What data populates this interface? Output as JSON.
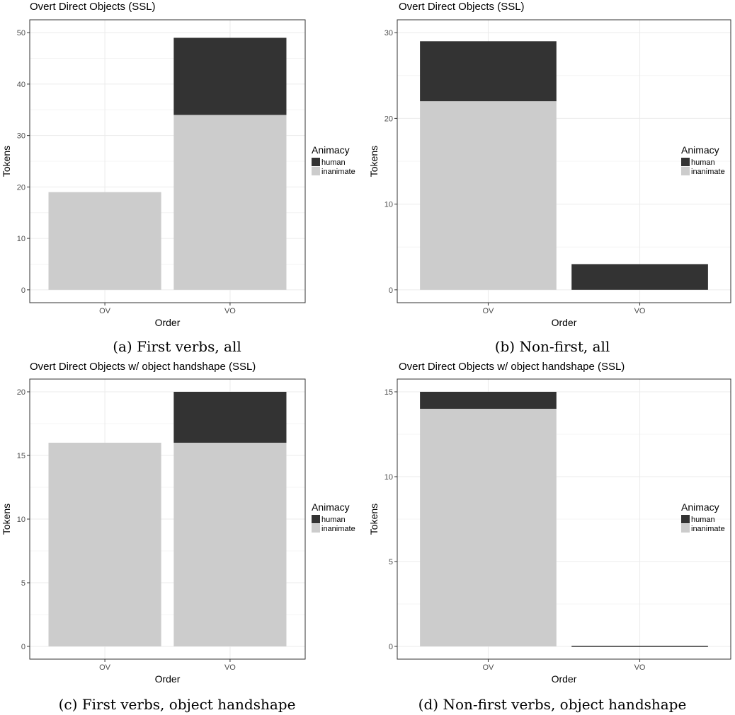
{
  "chart_data": [
    {
      "type": "bar",
      "stacked": true,
      "title": "Overt Direct Objects (SSL)",
      "xlabel": "Order",
      "ylabel": "Tokens",
      "categories": [
        "OV",
        "VO"
      ],
      "series": [
        {
          "name": "human",
          "color": "#333333",
          "values": [
            0,
            15
          ]
        },
        {
          "name": "inanimate",
          "color": "#cccccc",
          "values": [
            19,
            34
          ]
        }
      ],
      "ylim": [
        0,
        50
      ],
      "yticks": [
        "0",
        "10",
        "20",
        "30",
        "40",
        "50"
      ],
      "legend_title": "Animacy",
      "legend_position": "right",
      "grid": true,
      "caption": "(a) First verbs, all"
    },
    {
      "type": "bar",
      "stacked": true,
      "title": "Overt Direct Objects (SSL)",
      "xlabel": "Order",
      "ylabel": "Tokens",
      "categories": [
        "OV",
        "VO"
      ],
      "series": [
        {
          "name": "human",
          "color": "#333333",
          "values": [
            7,
            3
          ]
        },
        {
          "name": "inanimate",
          "color": "#cccccc",
          "values": [
            22,
            0
          ]
        }
      ],
      "ylim": [
        0,
        30
      ],
      "yticks": [
        "0",
        "10",
        "20",
        "30"
      ],
      "legend_title": "Animacy",
      "legend_position": "right",
      "grid": true,
      "caption": "(b) Non-first, all"
    },
    {
      "type": "bar",
      "stacked": true,
      "title": "Overt Direct Objects w/ object handshape (SSL)",
      "xlabel": "Order",
      "ylabel": "Tokens",
      "categories": [
        "OV",
        "VO"
      ],
      "series": [
        {
          "name": "human",
          "color": "#333333",
          "values": [
            0,
            4
          ]
        },
        {
          "name": "inanimate",
          "color": "#cccccc",
          "values": [
            16,
            16
          ]
        }
      ],
      "ylim": [
        0,
        20
      ],
      "yticks": [
        "0",
        "5",
        "10",
        "15",
        "20"
      ],
      "legend_title": "Animacy",
      "legend_position": "right",
      "grid": true,
      "caption": "(c) First verbs, object handshape"
    },
    {
      "type": "bar",
      "stacked": true,
      "title": "Overt Direct Objects w/ object handshape (SSL)",
      "xlabel": "Order",
      "ylabel": "Tokens",
      "categories": [
        "OV",
        "VO"
      ],
      "series": [
        {
          "name": "human",
          "color": "#333333",
          "values": [
            1,
            0
          ]
        },
        {
          "name": "inanimate",
          "color": "#cccccc",
          "values": [
            14,
            0
          ]
        }
      ],
      "ylim": [
        0,
        15
      ],
      "yticks": [
        "0",
        "5",
        "10",
        "15"
      ],
      "legend_title": "Animacy",
      "legend_position": "right",
      "grid": true,
      "caption": "(d) Non-first verbs, object handshape"
    }
  ]
}
